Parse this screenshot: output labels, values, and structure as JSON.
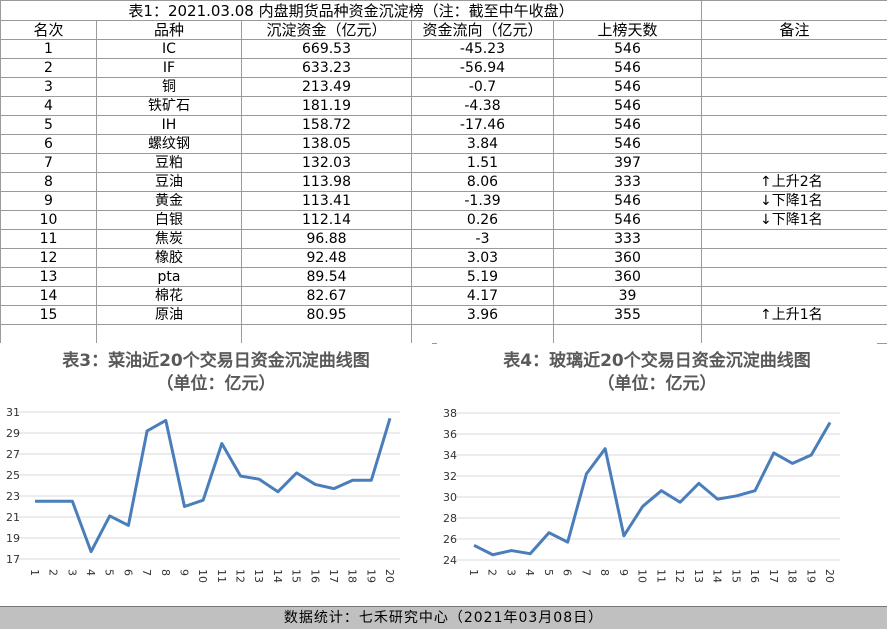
{
  "table": {
    "title": "表1：2021.03.08 内盘期货品种资金沉淀榜（注：截至中午收盘）",
    "header": [
      "名次",
      "品种",
      "沉淀资金（亿元）",
      "资金流向（亿元）",
      "上榜天数",
      "备注"
    ],
    "rows": [
      [
        1,
        "IC",
        669.53,
        -45.23,
        546,
        null
      ],
      [
        2,
        "IF",
        633.23,
        -56.94,
        546,
        null
      ],
      [
        3,
        "铜",
        213.49,
        -0.7,
        546,
        null
      ],
      [
        4,
        "铁矿石",
        181.19,
        -4.38,
        546,
        null
      ],
      [
        5,
        "IH",
        158.72,
        -17.46,
        546,
        null
      ],
      [
        6,
        "螺纹钢",
        138.05,
        3.84,
        546,
        null
      ],
      [
        7,
        "豆粕",
        132.03,
        1.51,
        397,
        null
      ],
      [
        8,
        "豆油",
        113.98,
        8.06,
        333,
        "↑上升2名"
      ],
      [
        9,
        "黄金",
        113.41,
        -1.39,
        546,
        "↓下降1名"
      ],
      [
        10,
        "白银",
        112.14,
        0.26,
        546,
        "↓下降1名"
      ],
      [
        11,
        "焦炭",
        96.88,
        -3,
        333,
        null
      ],
      [
        12,
        "橡胶",
        92.48,
        3.03,
        360,
        null
      ],
      [
        13,
        "pta",
        89.54,
        5.19,
        360,
        null
      ],
      [
        14,
        "棉花",
        82.67,
        4.17,
        39,
        null
      ],
      [
        15,
        "原油",
        80.95,
        3.96,
        355,
        "↑上升1名"
      ]
    ]
  },
  "chart_data": [
    {
      "type": "line",
      "title": "表3：菜油近20个交易日资金沉淀曲线图",
      "subtitle": "（单位：亿元）",
      "categories": [
        "1",
        "2",
        "3",
        "4",
        "5",
        "6",
        "7",
        "8",
        "9",
        "10",
        "11",
        "12",
        "13",
        "14",
        "15",
        "16",
        "17",
        "18",
        "19",
        "20"
      ],
      "values": [
        22.5,
        22.5,
        22.5,
        17.7,
        21.1,
        20.2,
        29.2,
        30.2,
        22.0,
        22.6,
        28.0,
        24.9,
        24.6,
        23.4,
        25.2,
        24.1,
        23.7,
        24.5,
        24.5,
        30.4
      ],
      "color": "#4a7ebb",
      "ylim": [
        17,
        31
      ],
      "yticks": [
        17,
        19,
        21,
        23,
        25,
        27,
        29,
        31
      ],
      "grid": true
    },
    {
      "type": "line",
      "title": "表4：玻璃近20个交易日资金沉淀曲线图",
      "subtitle": "（单位：亿元）",
      "categories": [
        "1",
        "2",
        "3",
        "4",
        "5",
        "6",
        "7",
        "8",
        "9",
        "10",
        "11",
        "12",
        "13",
        "14",
        "15",
        "16",
        "17",
        "18",
        "19",
        "20"
      ],
      "values": [
        25.4,
        24.5,
        24.9,
        24.6,
        26.6,
        25.7,
        32.2,
        34.6,
        26.3,
        29.1,
        30.6,
        29.5,
        31.3,
        29.8,
        30.1,
        30.6,
        34.2,
        33.2,
        34.0,
        37.1
      ],
      "color": "#4a7ebb",
      "ylim": [
        24,
        38
      ],
      "yticks": [
        24,
        26,
        28,
        30,
        32,
        34,
        36,
        38
      ],
      "grid": true
    }
  ],
  "footer": "数据统计：七禾研究中心（2021年03月08日）"
}
